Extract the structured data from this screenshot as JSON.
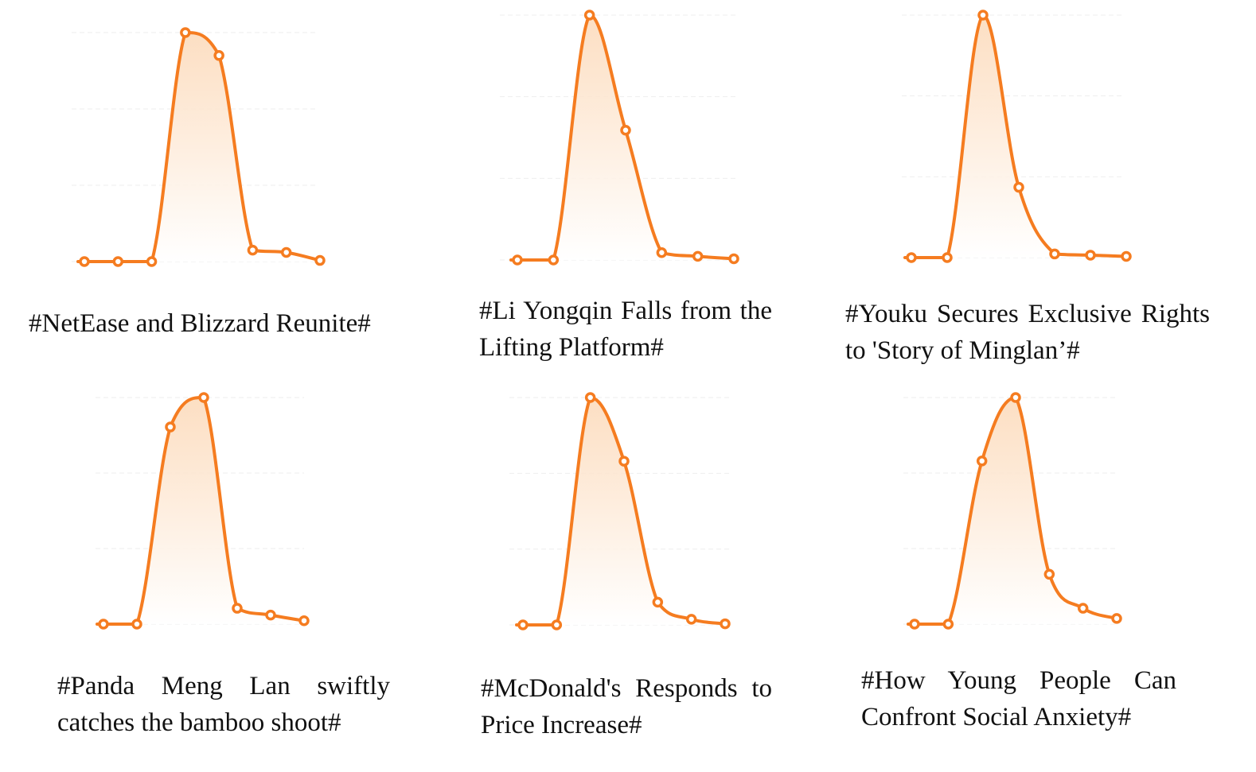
{
  "colors": {
    "line": "#f57c20",
    "fill_top": "#fcd9b8",
    "fill_bottom": "#ffffff",
    "grid": "#eeeeee"
  },
  "chart_data": [
    {
      "type": "area",
      "title": "#NetEase and Blizzard Reunite#",
      "x": [
        1,
        2,
        3,
        4,
        5,
        6,
        7,
        8
      ],
      "values": [
        0,
        0,
        0,
        100,
        90,
        5,
        4,
        0.5
      ],
      "ylim": [
        0,
        100
      ],
      "grid": true,
      "xlabel": "",
      "ylabel": ""
    },
    {
      "type": "area",
      "title": "#Li Yongqin Falls from the Lifting Platform#",
      "x": [
        1,
        2,
        3,
        4,
        5,
        6,
        7
      ],
      "values": [
        0,
        0,
        100,
        53,
        3,
        1.5,
        0.5
      ],
      "ylim": [
        0,
        100
      ],
      "grid": true,
      "xlabel": "",
      "ylabel": ""
    },
    {
      "type": "area",
      "title": "#Youku Secures Exclusive Rights to 'Story of Minglan’#",
      "x": [
        1,
        2,
        3,
        4,
        5,
        6,
        7
      ],
      "values": [
        0,
        0,
        100,
        29,
        1.5,
        1,
        0.5
      ],
      "ylim": [
        0,
        100
      ],
      "grid": true,
      "xlabel": "",
      "ylabel": ""
    },
    {
      "type": "area",
      "title": "#Panda Meng Lan swiftly catches the bamboo shoot#",
      "x": [
        1,
        2,
        3,
        4,
        5,
        6,
        7
      ],
      "values": [
        0,
        0,
        87,
        100,
        7,
        4,
        1.5
      ],
      "ylim": [
        0,
        100
      ],
      "grid": true,
      "xlabel": "",
      "ylabel": ""
    },
    {
      "type": "area",
      "title": "#McDonald's Responds to Price Increase#",
      "x": [
        1,
        2,
        3,
        4,
        5,
        6,
        7
      ],
      "values": [
        0,
        0,
        100,
        72,
        10,
        2.5,
        0.5
      ],
      "ylim": [
        0,
        100
      ],
      "grid": true,
      "xlabel": "",
      "ylabel": ""
    },
    {
      "type": "area",
      "title": "#How Young People Can Confront Social Anxiety#",
      "x": [
        1,
        2,
        3,
        4,
        5,
        6,
        7
      ],
      "values": [
        0,
        0,
        72,
        100,
        22,
        7,
        2.5
      ],
      "ylim": [
        0,
        100
      ],
      "grid": true,
      "xlabel": "",
      "ylabel": ""
    }
  ]
}
